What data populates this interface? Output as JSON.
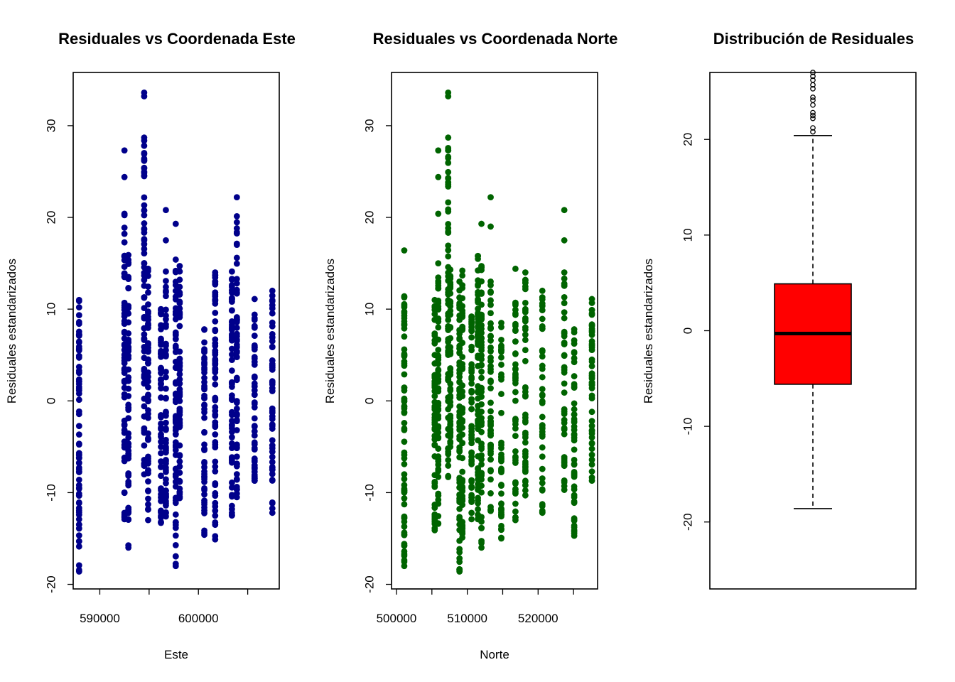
{
  "chart_data": [
    {
      "type": "scatter",
      "title": "Residuales vs Coordenada Este",
      "xlabel": "Este",
      "ylabel": "Residuales estandarizados",
      "xlim": [
        587300,
        608200
      ],
      "ylim": [
        -20.5,
        35.8
      ],
      "xticks": [
        590000,
        600000
      ],
      "xtick_labels": [
        "590000",
        "600000"
      ],
      "xtick_marks": [
        590000,
        595000,
        600000,
        605000
      ],
      "yticks": [
        -20,
        -10,
        0,
        10,
        20,
        30
      ],
      "ytick_labels": [
        "-20",
        "-10",
        "0",
        "10",
        "20",
        "30"
      ],
      "color": "#00008B",
      "columns": [
        {
          "x": 587900,
          "min": -18.6,
          "max": 11.0,
          "n": 70,
          "extra": [
            8.4,
            7.1,
            5.5
          ]
        },
        {
          "x": 592500,
          "min": -12.9,
          "max": 20.4,
          "n": 60,
          "extra": [
            27.3,
            24.4
          ]
        },
        {
          "x": 592900,
          "min": -16.0,
          "max": 15.9,
          "n": 60,
          "extra": []
        },
        {
          "x": 594500,
          "min": -8.0,
          "max": 28.7,
          "n": 70,
          "extra": [
            33.6,
            33.2
          ]
        },
        {
          "x": 594900,
          "min": -13.0,
          "max": 14.4,
          "n": 55,
          "extra": []
        },
        {
          "x": 596200,
          "min": -13.3,
          "max": 10.0,
          "n": 55,
          "extra": []
        },
        {
          "x": 596700,
          "min": -12.6,
          "max": 14.1,
          "n": 55,
          "extra": [
            20.8,
            17.5
          ]
        },
        {
          "x": 597700,
          "min": -18.0,
          "max": 15.4,
          "n": 70,
          "extra": [
            19.3
          ]
        },
        {
          "x": 598100,
          "min": -10.6,
          "max": 14.7,
          "n": 55,
          "extra": []
        },
        {
          "x": 600600,
          "min": -14.6,
          "max": 7.8,
          "n": 55,
          "extra": []
        },
        {
          "x": 601700,
          "min": -15.1,
          "max": 14.0,
          "n": 65,
          "extra": []
        },
        {
          "x": 603400,
          "min": -12.5,
          "max": 14.1,
          "n": 60,
          "extra": []
        },
        {
          "x": 603900,
          "min": -10.5,
          "max": 22.2,
          "n": 60,
          "extra": []
        },
        {
          "x": 605700,
          "min": -8.7,
          "max": 11.1,
          "n": 50,
          "extra": []
        },
        {
          "x": 607500,
          "min": -12.2,
          "max": 12.0,
          "n": 50,
          "extra": []
        }
      ]
    },
    {
      "type": "scatter",
      "title": "Residuales vs Coordenada Norte",
      "xlabel": "Norte",
      "ylabel": "Residuales estandarizados",
      "xlim": [
        499300,
        528400
      ],
      "ylim": [
        -20.5,
        35.8
      ],
      "xticks": [
        500000,
        510000,
        520000
      ],
      "xtick_labels": [
        "500000",
        "510000",
        "520000"
      ],
      "xtick_marks": [
        500000,
        505000,
        510000,
        515000,
        520000,
        525000
      ],
      "yticks": [
        -20,
        -10,
        0,
        10,
        20,
        30
      ],
      "ytick_labels": [
        "-20",
        "-10",
        "0",
        "10",
        "20",
        "30"
      ],
      "color": "#006400",
      "columns": [
        {
          "x": 501100,
          "min": -18.0,
          "max": 11.4,
          "n": 70,
          "extra": [
            16.4,
            8.4
          ]
        },
        {
          "x": 505400,
          "min": -14.1,
          "max": 11.0,
          "n": 60,
          "extra": []
        },
        {
          "x": 505900,
          "min": -13.4,
          "max": 15.0,
          "n": 60,
          "extra": [
            27.3,
            24.4,
            20.4
          ]
        },
        {
          "x": 507300,
          "min": -8.3,
          "max": 28.7,
          "n": 70,
          "extra": [
            33.6,
            33.2
          ]
        },
        {
          "x": 507600,
          "min": -5.0,
          "max": 14.3,
          "n": 50,
          "extra": []
        },
        {
          "x": 508900,
          "min": -18.6,
          "max": 13.0,
          "n": 75,
          "extra": []
        },
        {
          "x": 509300,
          "min": -14.9,
          "max": 14.2,
          "n": 60,
          "extra": []
        },
        {
          "x": 510600,
          "min": -12.9,
          "max": 9.2,
          "n": 50,
          "extra": []
        },
        {
          "x": 511500,
          "min": -12.9,
          "max": 15.8,
          "n": 65,
          "extra": []
        },
        {
          "x": 512000,
          "min": -16.0,
          "max": 14.7,
          "n": 60,
          "extra": [
            19.3
          ]
        },
        {
          "x": 513300,
          "min": -12.0,
          "max": 13.0,
          "n": 55,
          "extra": [
            22.2,
            19.0
          ]
        },
        {
          "x": 514800,
          "min": -15.0,
          "max": 8.5,
          "n": 50,
          "extra": []
        },
        {
          "x": 516800,
          "min": -13.0,
          "max": 10.7,
          "n": 50,
          "extra": [
            14.4
          ]
        },
        {
          "x": 518200,
          "min": -10.3,
          "max": 14.0,
          "n": 50,
          "extra": []
        },
        {
          "x": 520600,
          "min": -12.2,
          "max": 12.0,
          "n": 45,
          "extra": []
        },
        {
          "x": 523700,
          "min": -9.7,
          "max": 14.0,
          "n": 45,
          "extra": [
            20.8,
            17.5
          ]
        },
        {
          "x": 525100,
          "min": -14.7,
          "max": 7.8,
          "n": 50,
          "extra": []
        },
        {
          "x": 527600,
          "min": -8.7,
          "max": 11.1,
          "n": 50,
          "extra": []
        }
      ]
    },
    {
      "type": "box",
      "title": "Distribución de Residuales",
      "xlabel": "",
      "ylabel": "Residuales estandarizados",
      "ylim": [
        -27.0,
        27.0
      ],
      "yticks": [
        -20,
        -10,
        0,
        10,
        20
      ],
      "ytick_labels": [
        "-20",
        "-10",
        "0",
        "10",
        "20"
      ],
      "fill": "#FF0000",
      "whisker_low": -18.6,
      "q1": -5.6,
      "median": -0.3,
      "q3": 4.9,
      "whisker_high": 20.4,
      "outliers": [
        20.8,
        21.2,
        22.2,
        22.5,
        22.8,
        23.6,
        24.1,
        24.4,
        25.3,
        25.7,
        26.2,
        26.6,
        27.0
      ]
    }
  ]
}
